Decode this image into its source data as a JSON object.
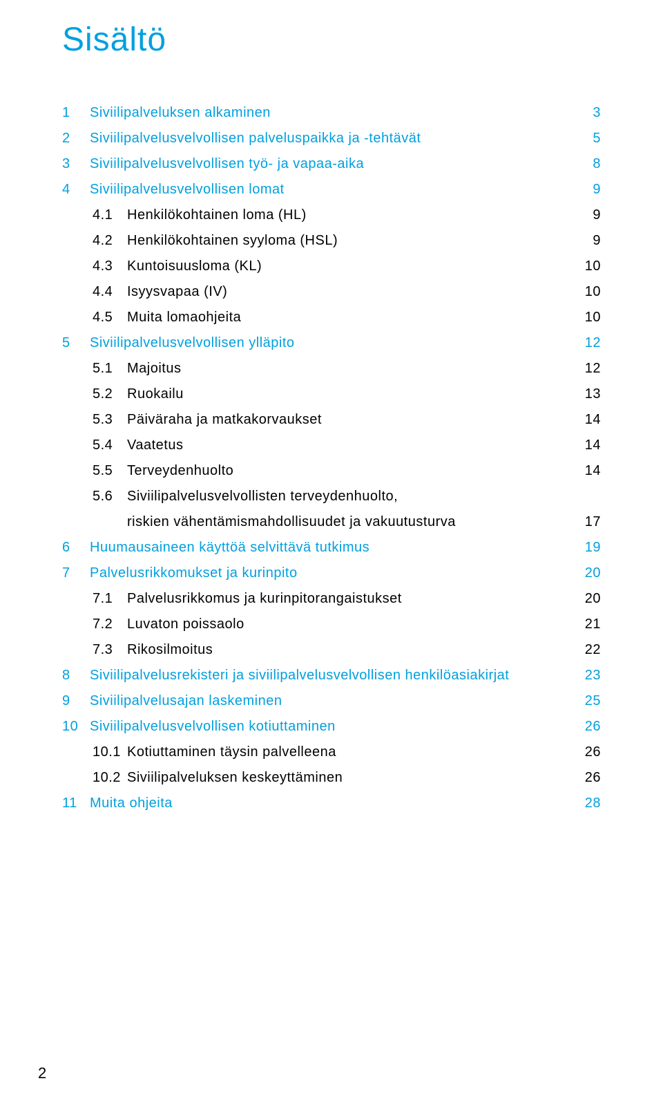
{
  "colors": {
    "accent": "#00a0df",
    "text": "#000000",
    "background": "#ffffff"
  },
  "typography": {
    "title_fontsize": 48,
    "body_fontsize": 20
  },
  "title": "Sisältö",
  "page_number": "2",
  "toc": [
    {
      "num": "1",
      "sub": "",
      "text": "Siviilipalveluksen alkaminen",
      "page": "3",
      "level": 1,
      "color": "blue"
    },
    {
      "num": "2",
      "sub": "",
      "text": "Siviilipalvelusvelvollisen palveluspaikka ja -tehtävät",
      "page": "5",
      "level": 1,
      "color": "blue"
    },
    {
      "num": "3",
      "sub": "",
      "text": "Siviilipalvelusvelvollisen työ- ja vapaa-aika",
      "page": "8",
      "level": 1,
      "color": "blue"
    },
    {
      "num": "4",
      "sub": "",
      "text": "Siviilipalvelusvelvollisen lomat",
      "page": "9",
      "level": 1,
      "color": "blue"
    },
    {
      "num": "",
      "sub": "4.1",
      "text": "Henkilökohtainen loma (HL)",
      "page": "9",
      "level": 2,
      "color": "black"
    },
    {
      "num": "",
      "sub": "4.2",
      "text": "Henkilökohtainen syyloma (HSL)",
      "page": "9",
      "level": 2,
      "color": "black"
    },
    {
      "num": "",
      "sub": "4.3",
      "text": "Kuntoisuusloma (KL)",
      "page": "10",
      "level": 2,
      "color": "black"
    },
    {
      "num": "",
      "sub": "4.4",
      "text": "Isyysvapaa (IV)",
      "page": "10",
      "level": 2,
      "color": "black"
    },
    {
      "num": "",
      "sub": "4.5",
      "text": "Muita lomaohjeita",
      "page": "10",
      "level": 2,
      "color": "black"
    },
    {
      "num": "5",
      "sub": "",
      "text": "Siviilipalvelusvelvollisen ylläpito",
      "page": "12",
      "level": 1,
      "color": "blue"
    },
    {
      "num": "",
      "sub": "5.1",
      "text": "Majoitus",
      "page": "12",
      "level": 2,
      "color": "black"
    },
    {
      "num": "",
      "sub": "5.2",
      "text": "Ruokailu",
      "page": "13",
      "level": 2,
      "color": "black"
    },
    {
      "num": "",
      "sub": "5.3",
      "text": "Päiväraha ja matkakorvaukset",
      "page": "14",
      "level": 2,
      "color": "black"
    },
    {
      "num": "",
      "sub": "5.4",
      "text": "Vaatetus",
      "page": "14",
      "level": 2,
      "color": "black"
    },
    {
      "num": "",
      "sub": "5.5",
      "text": "Terveydenhuolto",
      "page": "14",
      "level": 2,
      "color": "black"
    },
    {
      "num": "",
      "sub": "5.6",
      "text": "Siviilipalvelusvelvollisten terveydenhuolto,",
      "page": "",
      "level": 2,
      "color": "black",
      "noleader": true
    },
    {
      "num": "",
      "sub": "",
      "text": "riskien vähentämismahdollisuudet ja vakuutusturva",
      "page": "17",
      "level": 3,
      "color": "black"
    },
    {
      "num": "6",
      "sub": "",
      "text": "Huumausaineen käyttöä selvittävä tutkimus",
      "page": "19",
      "level": 1,
      "color": "blue"
    },
    {
      "num": "7",
      "sub": "",
      "text": "Palvelusrikkomukset ja kurinpito",
      "page": "20",
      "level": 1,
      "color": "blue"
    },
    {
      "num": "",
      "sub": "7.1",
      "text": "Palvelusrikkomus ja kurinpitorangaistukset",
      "page": "20",
      "level": 2,
      "color": "black"
    },
    {
      "num": "",
      "sub": "7.2",
      "text": "Luvaton poissaolo",
      "page": "21",
      "level": 2,
      "color": "black"
    },
    {
      "num": "",
      "sub": "7.3",
      "text": "Rikosilmoitus",
      "page": "22",
      "level": 2,
      "color": "black"
    },
    {
      "num": "8",
      "sub": "",
      "text": "Siviilipalvelusrekisteri ja siviilipalvelusvelvollisen henkilöasiakirjat",
      "page": "23",
      "level": 1,
      "color": "blue"
    },
    {
      "num": "9",
      "sub": "",
      "text": "Siviilipalvelusajan laskeminen",
      "page": "25",
      "level": 1,
      "color": "blue"
    },
    {
      "num": "10",
      "sub": "",
      "text": "Siviilipalvelusvelvollisen kotiuttaminen",
      "page": "26",
      "level": 1,
      "color": "blue"
    },
    {
      "num": "",
      "sub": "10.1",
      "text": "Kotiuttaminen täysin palvelleena",
      "page": "26",
      "level": 2,
      "color": "black"
    },
    {
      "num": "",
      "sub": "10.2",
      "text": "Siviilipalveluksen keskeyttäminen",
      "page": "26",
      "level": 2,
      "color": "black"
    },
    {
      "num": "11",
      "sub": "",
      "text": "Muita ohjeita",
      "page": "28",
      "level": 1,
      "color": "blue"
    }
  ]
}
